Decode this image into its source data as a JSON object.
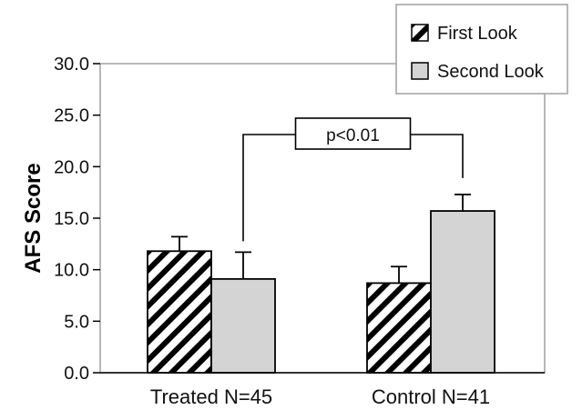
{
  "chart_data": {
    "type": "bar",
    "categories": [
      "Treated N=45",
      "Control N=41"
    ],
    "series": [
      {
        "name": "First Look",
        "values": [
          11.8,
          8.7
        ],
        "errors": [
          1.4,
          1.6
        ],
        "pattern": "hatched"
      },
      {
        "name": "Second Look",
        "values": [
          9.1,
          15.7
        ],
        "errors": [
          2.6,
          1.6
        ],
        "color": "#d4d4d4"
      }
    ],
    "title": "",
    "xlabel": "",
    "ylabel": "AFS Score",
    "ylim": [
      0,
      30
    ],
    "yticks": [
      "0.0",
      "5.0",
      "10.0",
      "15.0",
      "20.0",
      "25.0",
      "30.0"
    ],
    "legend": {
      "position": "top-right",
      "entries": [
        "First Look",
        "Second Look"
      ]
    },
    "annotation": {
      "text": "p<0.01",
      "from": "Treated N=45 / Second Look",
      "to": "Control N=41 / Second Look"
    },
    "grid": false
  }
}
